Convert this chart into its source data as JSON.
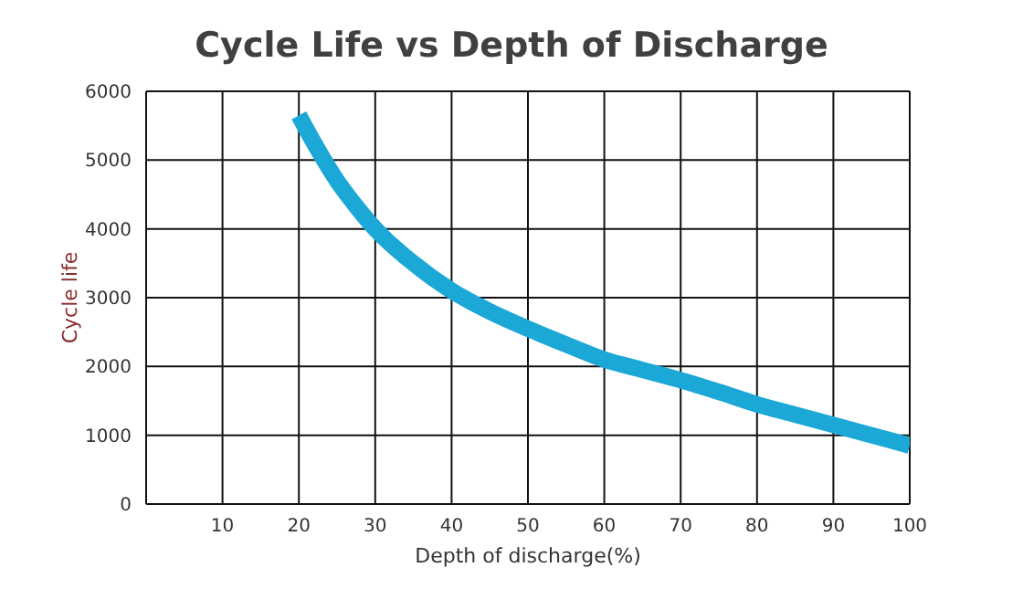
{
  "chart_data": {
    "type": "line",
    "title": "Cycle Life vs Depth of Discharge",
    "xlabel": "Depth of discharge(%)",
    "ylabel": "Cycle life",
    "x": [
      20,
      22.5,
      25,
      27.5,
      30,
      35,
      40,
      45,
      50,
      55,
      60,
      65,
      70,
      75,
      80,
      85,
      90,
      95,
      100
    ],
    "series": [
      {
        "color": "#1ba8d6",
        "values": [
          5650,
          5150,
          4700,
          4330,
          4000,
          3500,
          3100,
          2800,
          2550,
          2320,
          2100,
          1950,
          1800,
          1630,
          1450,
          1300,
          1150,
          1000,
          850
        ]
      }
    ],
    "xlim": [
      0,
      100
    ],
    "xticks": [
      10,
      20,
      30,
      40,
      50,
      60,
      70,
      80,
      90,
      100
    ],
    "ylim": [
      0,
      6000
    ],
    "yticks": [
      0,
      1000,
      2000,
      3000,
      4000,
      5000,
      6000
    ],
    "grid": true,
    "legend": false,
    "marker": "none",
    "line_style": "solid"
  }
}
